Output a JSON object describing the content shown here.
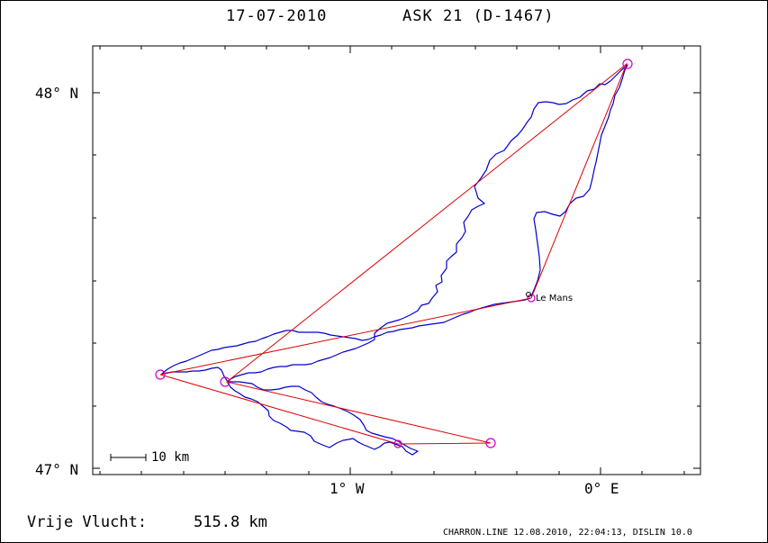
{
  "header": {
    "date": "17-07-2010",
    "aircraft": "ASK 21 (D-1467)"
  },
  "axes": {
    "y_labels": [
      "48° N",
      "47° N"
    ],
    "x_labels": [
      "1° W",
      "0° E"
    ]
  },
  "map": {
    "scale_label": "10 km",
    "city_label": "Le Mans",
    "task_color": "#e00000",
    "track_color": "#0000cc",
    "turnpoint_color": "#cc00cc"
  },
  "footer": {
    "distance_label": "Vrije Vlucht:",
    "distance_value": "515.8 km",
    "credit": "CHARRON.LINE 12.08.2010, 22:04:13, DISLIN 10.0"
  }
}
